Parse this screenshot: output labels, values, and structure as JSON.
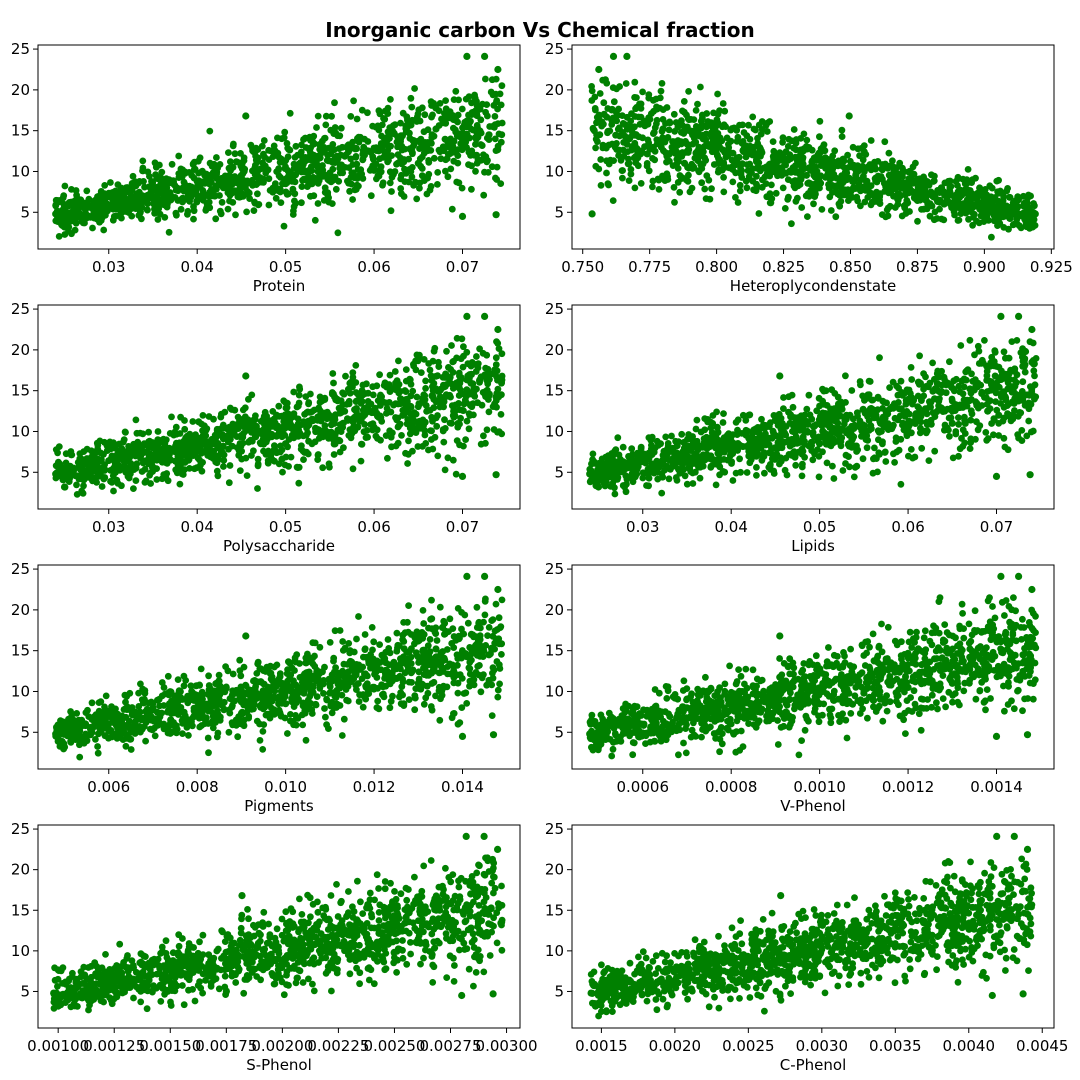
{
  "figure": {
    "title": "Inorganic carbon Vs Chemical fraction",
    "marker_color": "#008000"
  },
  "chart_data": [
    {
      "type": "scatter",
      "xlabel": "Protein",
      "ylabel": "",
      "xlim": [
        0.022,
        0.0765
      ],
      "ylim": [
        0.5,
        25.5
      ],
      "xticks": [
        0.03,
        0.04,
        0.05,
        0.06,
        0.07
      ],
      "xtick_labels": [
        "0.03",
        "0.04",
        "0.05",
        "0.06",
        "0.07"
      ],
      "yticks": [
        5,
        10,
        15,
        20,
        25
      ],
      "ytick_labels": [
        "5",
        "10",
        "15",
        "20",
        "25"
      ],
      "x_range": [
        0.024,
        0.0745
      ],
      "trend": "increasing",
      "points": [
        [
          0.024,
          4.8
        ],
        [
          0.025,
          3.2
        ],
        [
          0.027,
          6.1
        ],
        [
          0.029,
          5.0
        ],
        [
          0.031,
          7.2
        ],
        [
          0.033,
          5.5
        ],
        [
          0.035,
          8.0
        ],
        [
          0.037,
          6.5
        ],
        [
          0.04,
          8.8
        ],
        [
          0.042,
          7.0
        ],
        [
          0.045,
          9.5
        ],
        [
          0.0455,
          16.8
        ],
        [
          0.048,
          10.2
        ],
        [
          0.05,
          8.5
        ],
        [
          0.053,
          11.5
        ],
        [
          0.055,
          9.8
        ],
        [
          0.058,
          12.8
        ],
        [
          0.06,
          10.5
        ],
        [
          0.063,
          14.0
        ],
        [
          0.065,
          11.0
        ],
        [
          0.067,
          15.2
        ],
        [
          0.069,
          12.5
        ],
        [
          0.0705,
          24.1
        ],
        [
          0.0725,
          24.1
        ],
        [
          0.071,
          17.0
        ],
        [
          0.073,
          14.5
        ],
        [
          0.074,
          22.5
        ],
        [
          0.07,
          4.5
        ],
        [
          0.0738,
          4.7
        ]
      ],
      "grid": false,
      "legend": "none"
    },
    {
      "type": "scatter",
      "xlabel": "Heteroplycondenstate",
      "ylabel": "",
      "xlim": [
        0.746,
        0.926
      ],
      "ylim": [
        0.5,
        25.5
      ],
      "xticks": [
        0.75,
        0.775,
        0.8,
        0.825,
        0.85,
        0.875,
        0.9,
        0.925
      ],
      "xtick_labels": [
        "0.750",
        "0.775",
        "0.800",
        "0.825",
        "0.850",
        "0.875",
        "0.900",
        "0.925"
      ],
      "yticks": [
        5,
        10,
        15,
        20,
        25
      ],
      "ytick_labels": [
        "5",
        "10",
        "15",
        "20",
        "25"
      ],
      "x_range": [
        0.753,
        0.919
      ],
      "trend": "decreasing",
      "points": [
        [
          0.7535,
          4.8
        ],
        [
          0.756,
          22.5
        ],
        [
          0.7615,
          24.1
        ],
        [
          0.7665,
          24.1
        ],
        [
          0.758,
          17.0
        ],
        [
          0.765,
          14.5
        ],
        [
          0.772,
          12.5
        ],
        [
          0.78,
          15.2
        ],
        [
          0.788,
          11.0
        ],
        [
          0.795,
          14.0
        ],
        [
          0.803,
          10.5
        ],
        [
          0.811,
          12.8
        ],
        [
          0.819,
          9.8
        ],
        [
          0.827,
          11.5
        ],
        [
          0.835,
          8.5
        ],
        [
          0.843,
          10.2
        ],
        [
          0.8495,
          16.8
        ],
        [
          0.852,
          9.5
        ],
        [
          0.86,
          7.0
        ],
        [
          0.868,
          8.8
        ],
        [
          0.876,
          6.5
        ],
        [
          0.884,
          8.0
        ],
        [
          0.892,
          5.5
        ],
        [
          0.9,
          7.2
        ],
        [
          0.908,
          5.0
        ],
        [
          0.915,
          6.1
        ],
        [
          0.918,
          3.2
        ],
        [
          0.919,
          4.8
        ]
      ],
      "grid": false,
      "legend": "none"
    },
    {
      "type": "scatter",
      "xlabel": "Polysaccharide",
      "ylabel": "",
      "xlim": [
        0.022,
        0.0765
      ],
      "ylim": [
        0.5,
        25.5
      ],
      "xticks": [
        0.03,
        0.04,
        0.05,
        0.06,
        0.07
      ],
      "xtick_labels": [
        "0.03",
        "0.04",
        "0.05",
        "0.06",
        "0.07"
      ],
      "yticks": [
        5,
        10,
        15,
        20,
        25
      ],
      "ytick_labels": [
        "5",
        "10",
        "15",
        "20",
        "25"
      ],
      "x_range": [
        0.024,
        0.0745
      ],
      "trend": "increasing",
      "points": [
        [
          0.024,
          4.8
        ],
        [
          0.025,
          3.2
        ],
        [
          0.027,
          6.1
        ],
        [
          0.029,
          5.0
        ],
        [
          0.031,
          7.2
        ],
        [
          0.033,
          5.5
        ],
        [
          0.035,
          8.0
        ],
        [
          0.037,
          6.5
        ],
        [
          0.04,
          8.8
        ],
        [
          0.042,
          7.0
        ],
        [
          0.045,
          9.5
        ],
        [
          0.0455,
          16.8
        ],
        [
          0.048,
          10.2
        ],
        [
          0.05,
          8.5
        ],
        [
          0.053,
          11.5
        ],
        [
          0.055,
          9.8
        ],
        [
          0.058,
          12.8
        ],
        [
          0.06,
          10.5
        ],
        [
          0.063,
          14.0
        ],
        [
          0.065,
          11.0
        ],
        [
          0.067,
          15.2
        ],
        [
          0.069,
          12.5
        ],
        [
          0.0705,
          24.1
        ],
        [
          0.0725,
          24.1
        ],
        [
          0.071,
          17.0
        ],
        [
          0.073,
          14.5
        ],
        [
          0.074,
          22.5
        ],
        [
          0.07,
          4.5
        ],
        [
          0.0738,
          4.7
        ]
      ],
      "grid": false,
      "legend": "none"
    },
    {
      "type": "scatter",
      "xlabel": "Lipids",
      "ylabel": "",
      "xlim": [
        0.022,
        0.0765
      ],
      "ylim": [
        0.5,
        25.5
      ],
      "xticks": [
        0.03,
        0.04,
        0.05,
        0.06,
        0.07
      ],
      "xtick_labels": [
        "0.03",
        "0.04",
        "0.05",
        "0.06",
        "0.07"
      ],
      "yticks": [
        5,
        10,
        15,
        20,
        25
      ],
      "ytick_labels": [
        "5",
        "10",
        "15",
        "20",
        "25"
      ],
      "x_range": [
        0.024,
        0.0745
      ],
      "trend": "increasing",
      "points": [
        [
          0.024,
          4.8
        ],
        [
          0.025,
          3.2
        ],
        [
          0.027,
          6.1
        ],
        [
          0.029,
          5.0
        ],
        [
          0.031,
          7.2
        ],
        [
          0.033,
          5.5
        ],
        [
          0.035,
          8.0
        ],
        [
          0.037,
          6.5
        ],
        [
          0.04,
          8.8
        ],
        [
          0.042,
          7.0
        ],
        [
          0.045,
          9.5
        ],
        [
          0.0455,
          16.8
        ],
        [
          0.048,
          10.2
        ],
        [
          0.05,
          8.5
        ],
        [
          0.053,
          11.5
        ],
        [
          0.055,
          9.8
        ],
        [
          0.058,
          12.8
        ],
        [
          0.06,
          10.5
        ],
        [
          0.063,
          14.0
        ],
        [
          0.065,
          11.0
        ],
        [
          0.067,
          15.2
        ],
        [
          0.069,
          12.5
        ],
        [
          0.0705,
          24.1
        ],
        [
          0.0725,
          24.1
        ],
        [
          0.071,
          17.0
        ],
        [
          0.073,
          14.5
        ],
        [
          0.074,
          22.5
        ],
        [
          0.07,
          4.5
        ],
        [
          0.0738,
          4.7
        ]
      ],
      "grid": false,
      "legend": "none"
    },
    {
      "type": "scatter",
      "xlabel": "Pigments",
      "ylabel": "",
      "xlim": [
        0.0044,
        0.0153
      ],
      "ylim": [
        0.5,
        25.5
      ],
      "xticks": [
        0.006,
        0.008,
        0.01,
        0.012,
        0.014
      ],
      "xtick_labels": [
        "0.006",
        "0.008",
        "0.010",
        "0.012",
        "0.014"
      ],
      "yticks": [
        5,
        10,
        15,
        20,
        25
      ],
      "ytick_labels": [
        "5",
        "10",
        "15",
        "20",
        "25"
      ],
      "x_range": [
        0.0048,
        0.0149
      ],
      "trend": "increasing",
      "points": [
        [
          0.0048,
          4.8
        ],
        [
          0.005,
          3.2
        ],
        [
          0.0054,
          6.1
        ],
        [
          0.0058,
          5.0
        ],
        [
          0.0062,
          7.2
        ],
        [
          0.0066,
          5.5
        ],
        [
          0.007,
          8.0
        ],
        [
          0.0074,
          6.5
        ],
        [
          0.008,
          8.8
        ],
        [
          0.0084,
          7.0
        ],
        [
          0.009,
          9.5
        ],
        [
          0.0091,
          16.8
        ],
        [
          0.0096,
          10.2
        ],
        [
          0.01,
          8.5
        ],
        [
          0.0106,
          11.5
        ],
        [
          0.011,
          9.8
        ],
        [
          0.0116,
          12.8
        ],
        [
          0.012,
          10.5
        ],
        [
          0.0126,
          14.0
        ],
        [
          0.013,
          11.0
        ],
        [
          0.0134,
          15.2
        ],
        [
          0.0138,
          12.5
        ],
        [
          0.0141,
          24.1
        ],
        [
          0.0145,
          24.1
        ],
        [
          0.0142,
          17.0
        ],
        [
          0.0146,
          14.5
        ],
        [
          0.0148,
          22.5
        ],
        [
          0.014,
          4.5
        ],
        [
          0.0147,
          4.7
        ]
      ],
      "grid": false,
      "legend": "none"
    },
    {
      "type": "scatter",
      "xlabel": "V-Phenol",
      "ylabel": "",
      "xlim": [
        0.00044,
        0.00153
      ],
      "ylim": [
        0.5,
        25.5
      ],
      "xticks": [
        0.0006,
        0.0008,
        0.001,
        0.0012,
        0.0014
      ],
      "xtick_labels": [
        "0.0006",
        "0.0008",
        "0.0010",
        "0.0012",
        "0.0014"
      ],
      "yticks": [
        5,
        10,
        15,
        20,
        25
      ],
      "ytick_labels": [
        "5",
        "10",
        "15",
        "20",
        "25"
      ],
      "x_range": [
        0.00048,
        0.00149
      ],
      "trend": "increasing",
      "points": [
        [
          0.00048,
          4.8
        ],
        [
          0.0005,
          3.2
        ],
        [
          0.00054,
          6.1
        ],
        [
          0.00058,
          5.0
        ],
        [
          0.00062,
          7.2
        ],
        [
          0.00066,
          5.5
        ],
        [
          0.0007,
          8.0
        ],
        [
          0.00074,
          6.5
        ],
        [
          0.0008,
          8.8
        ],
        [
          0.00084,
          7.0
        ],
        [
          0.0009,
          9.5
        ],
        [
          0.00091,
          16.8
        ],
        [
          0.00096,
          10.2
        ],
        [
          0.001,
          8.5
        ],
        [
          0.00106,
          11.5
        ],
        [
          0.0011,
          9.8
        ],
        [
          0.00116,
          12.8
        ],
        [
          0.0012,
          10.5
        ],
        [
          0.00126,
          14.0
        ],
        [
          0.0013,
          11.0
        ],
        [
          0.00134,
          15.2
        ],
        [
          0.00138,
          12.5
        ],
        [
          0.00141,
          24.1
        ],
        [
          0.00145,
          24.1
        ],
        [
          0.00142,
          17.0
        ],
        [
          0.00146,
          14.5
        ],
        [
          0.00148,
          22.5
        ],
        [
          0.0014,
          4.5
        ],
        [
          0.00147,
          4.7
        ]
      ],
      "grid": false,
      "legend": "none"
    },
    {
      "type": "scatter",
      "xlabel": "S-Phenol",
      "ylabel": "",
      "xlim": [
        0.00091,
        0.00306
      ],
      "ylim": [
        0.5,
        25.5
      ],
      "xticks": [
        0.001,
        0.00125,
        0.0015,
        0.00175,
        0.002,
        0.00225,
        0.0025,
        0.00275,
        0.003
      ],
      "xtick_labels": [
        "0.00100",
        "0.00125",
        "0.00150",
        "0.00175",
        "0.00200",
        "0.00225",
        "0.00250",
        "0.00275",
        "0.00300"
      ],
      "yticks": [
        5,
        10,
        15,
        20,
        25
      ],
      "ytick_labels": [
        "5",
        "10",
        "15",
        "20",
        "25"
      ],
      "x_range": [
        0.00098,
        0.00298
      ],
      "trend": "increasing",
      "points": [
        [
          0.00098,
          4.8
        ],
        [
          0.001,
          3.2
        ],
        [
          0.00108,
          6.1
        ],
        [
          0.00116,
          5.0
        ],
        [
          0.00124,
          7.2
        ],
        [
          0.00132,
          5.5
        ],
        [
          0.0014,
          8.0
        ],
        [
          0.00148,
          6.5
        ],
        [
          0.0016,
          8.8
        ],
        [
          0.00168,
          7.0
        ],
        [
          0.0018,
          9.5
        ],
        [
          0.00182,
          16.8
        ],
        [
          0.00192,
          10.2
        ],
        [
          0.002,
          8.5
        ],
        [
          0.00212,
          11.5
        ],
        [
          0.0022,
          9.8
        ],
        [
          0.00232,
          12.8
        ],
        [
          0.0024,
          10.5
        ],
        [
          0.00252,
          14.0
        ],
        [
          0.0026,
          11.0
        ],
        [
          0.00268,
          15.2
        ],
        [
          0.00276,
          12.5
        ],
        [
          0.00282,
          24.1
        ],
        [
          0.0029,
          24.1
        ],
        [
          0.00284,
          17.0
        ],
        [
          0.00292,
          14.5
        ],
        [
          0.00296,
          22.5
        ],
        [
          0.0028,
          4.5
        ],
        [
          0.00294,
          4.7
        ]
      ],
      "grid": false,
      "legend": "none"
    },
    {
      "type": "scatter",
      "xlabel": "C-Phenol",
      "ylabel": "",
      "xlim": [
        0.0013,
        0.00458
      ],
      "ylim": [
        0.5,
        25.5
      ],
      "xticks": [
        0.0015,
        0.002,
        0.0025,
        0.003,
        0.0035,
        0.004,
        0.0045
      ],
      "xtick_labels": [
        "0.0015",
        "0.0020",
        "0.0025",
        "0.0030",
        "0.0035",
        "0.0040",
        "0.0045"
      ],
      "yticks": [
        5,
        10,
        15,
        20,
        25
      ],
      "ytick_labels": [
        "5",
        "10",
        "15",
        "20",
        "25"
      ],
      "x_range": [
        0.00143,
        0.00443
      ],
      "trend": "increasing",
      "points": [
        [
          0.00143,
          4.8
        ],
        [
          0.00146,
          3.2
        ],
        [
          0.00158,
          6.1
        ],
        [
          0.0017,
          5.0
        ],
        [
          0.00182,
          7.2
        ],
        [
          0.00194,
          5.5
        ],
        [
          0.00206,
          8.0
        ],
        [
          0.00218,
          6.5
        ],
        [
          0.00236,
          8.8
        ],
        [
          0.00248,
          7.0
        ],
        [
          0.00266,
          9.5
        ],
        [
          0.00272,
          16.8
        ],
        [
          0.00284,
          10.2
        ],
        [
          0.00296,
          8.5
        ],
        [
          0.00314,
          11.5
        ],
        [
          0.00326,
          9.8
        ],
        [
          0.00344,
          12.8
        ],
        [
          0.00356,
          10.5
        ],
        [
          0.00374,
          14.0
        ],
        [
          0.00386,
          11.0
        ],
        [
          0.00398,
          15.2
        ],
        [
          0.0041,
          12.5
        ],
        [
          0.00419,
          24.1
        ],
        [
          0.00431,
          24.1
        ],
        [
          0.00422,
          17.0
        ],
        [
          0.00434,
          14.5
        ],
        [
          0.0044,
          22.5
        ],
        [
          0.00416,
          4.5
        ],
        [
          0.00437,
          4.7
        ]
      ],
      "grid": false,
      "legend": "none"
    }
  ]
}
